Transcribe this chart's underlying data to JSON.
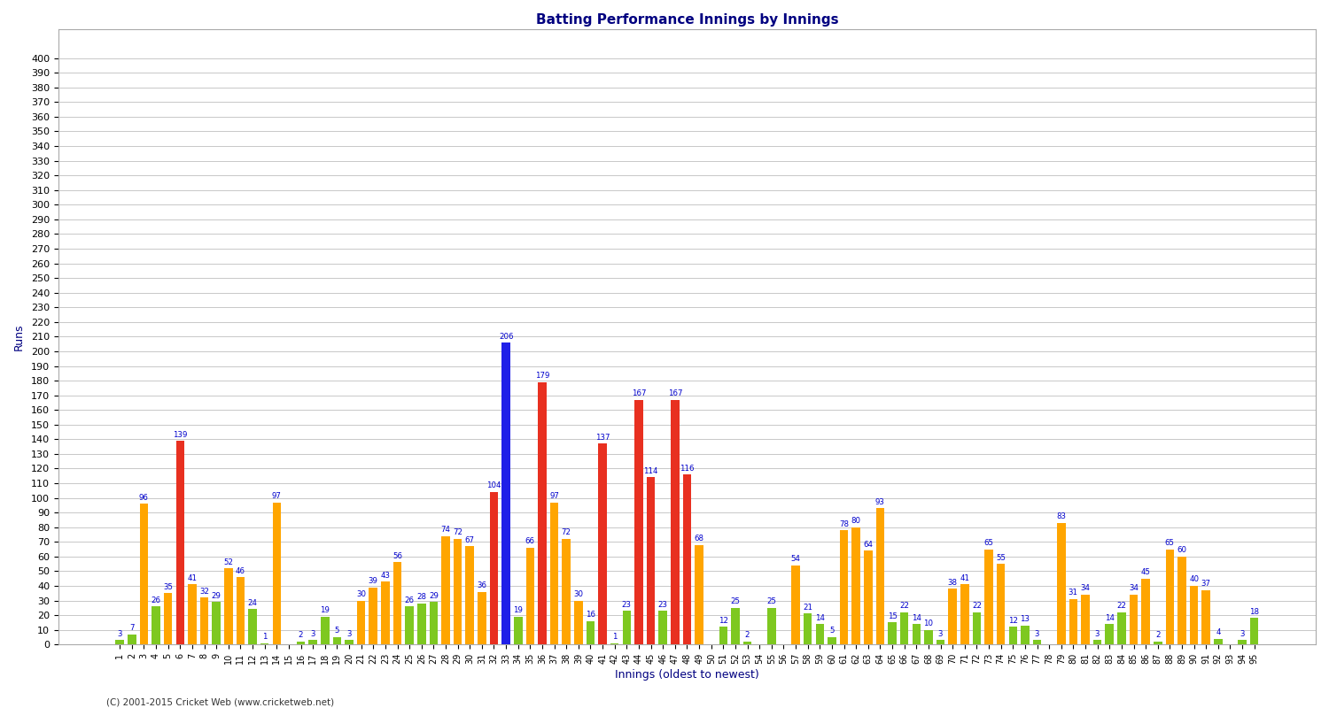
{
  "title": "Batting Performance Innings by Innings",
  "xlabel": "Innings (oldest to newest)",
  "ylabel": "Runs",
  "footer": "(C) 2001-2015 Cricket Web (www.cricketweb.net)",
  "ylim": [
    0,
    420
  ],
  "yticks": [
    0,
    10,
    20,
    30,
    40,
    50,
    60,
    70,
    80,
    90,
    100,
    110,
    120,
    130,
    140,
    150,
    160,
    170,
    180,
    190,
    200,
    210,
    220,
    230,
    240,
    250,
    260,
    270,
    280,
    290,
    300,
    310,
    320,
    330,
    340,
    350,
    360,
    370,
    380,
    390,
    400
  ],
  "innings": [
    {
      "label": "1",
      "runs": 3,
      "not_out": false
    },
    {
      "label": "2",
      "runs": 7,
      "not_out": false
    },
    {
      "label": "3",
      "runs": 96,
      "not_out": false
    },
    {
      "label": "4",
      "runs": 26,
      "not_out": false
    },
    {
      "label": "5",
      "runs": 35,
      "not_out": false
    },
    {
      "label": "6",
      "runs": 139,
      "not_out": false
    },
    {
      "label": "7",
      "runs": 41,
      "not_out": false
    },
    {
      "label": "8",
      "runs": 32,
      "not_out": false
    },
    {
      "label": "9",
      "runs": 29,
      "not_out": false
    },
    {
      "label": "10",
      "runs": 52,
      "not_out": false
    },
    {
      "label": "11",
      "runs": 46,
      "not_out": false
    },
    {
      "label": "12",
      "runs": 24,
      "not_out": false
    },
    {
      "label": "13",
      "runs": 1,
      "not_out": false
    },
    {
      "label": "14",
      "runs": 97,
      "not_out": false
    },
    {
      "label": "15",
      "runs": 0,
      "not_out": false
    },
    {
      "label": "16",
      "runs": 2,
      "not_out": false
    },
    {
      "label": "17",
      "runs": 3,
      "not_out": false
    },
    {
      "label": "18",
      "runs": 19,
      "not_out": false
    },
    {
      "label": "19",
      "runs": 5,
      "not_out": false
    },
    {
      "label": "20",
      "runs": 3,
      "not_out": false
    },
    {
      "label": "21",
      "runs": 30,
      "not_out": false
    },
    {
      "label": "22",
      "runs": 39,
      "not_out": false
    },
    {
      "label": "23",
      "runs": 43,
      "not_out": false
    },
    {
      "label": "24",
      "runs": 56,
      "not_out": false
    },
    {
      "label": "25",
      "runs": 26,
      "not_out": false
    },
    {
      "label": "26",
      "runs": 28,
      "not_out": false
    },
    {
      "label": "27",
      "runs": 29,
      "not_out": false
    },
    {
      "label": "28",
      "runs": 74,
      "not_out": false
    },
    {
      "label": "29",
      "runs": 72,
      "not_out": false
    },
    {
      "label": "30",
      "runs": 67,
      "not_out": false
    },
    {
      "label": "31",
      "runs": 36,
      "not_out": false
    },
    {
      "label": "32",
      "runs": 104,
      "not_out": false
    },
    {
      "label": "33",
      "runs": 206,
      "not_out": true
    },
    {
      "label": "34",
      "runs": 19,
      "not_out": false
    },
    {
      "label": "35",
      "runs": 66,
      "not_out": false
    },
    {
      "label": "36",
      "runs": 179,
      "not_out": false
    },
    {
      "label": "37",
      "runs": 97,
      "not_out": false
    },
    {
      "label": "38",
      "runs": 72,
      "not_out": false
    },
    {
      "label": "39",
      "runs": 30,
      "not_out": false
    },
    {
      "label": "40",
      "runs": 16,
      "not_out": false
    },
    {
      "label": "41",
      "runs": 137,
      "not_out": false
    },
    {
      "label": "42",
      "runs": 1,
      "not_out": false
    },
    {
      "label": "43",
      "runs": 23,
      "not_out": false
    },
    {
      "label": "44",
      "runs": 167,
      "not_out": false
    },
    {
      "label": "45",
      "runs": 114,
      "not_out": false
    },
    {
      "label": "46",
      "runs": 23,
      "not_out": false
    },
    {
      "label": "47",
      "runs": 167,
      "not_out": false
    },
    {
      "label": "48",
      "runs": 116,
      "not_out": false
    },
    {
      "label": "49",
      "runs": 68,
      "not_out": false
    },
    {
      "label": "50",
      "runs": 0,
      "not_out": false
    },
    {
      "label": "51",
      "runs": 12,
      "not_out": false
    },
    {
      "label": "52",
      "runs": 25,
      "not_out": false
    },
    {
      "label": "53",
      "runs": 2,
      "not_out": false
    },
    {
      "label": "54",
      "runs": 0,
      "not_out": false
    },
    {
      "label": "55",
      "runs": 25,
      "not_out": false
    },
    {
      "label": "56",
      "runs": 0,
      "not_out": false
    },
    {
      "label": "57",
      "runs": 54,
      "not_out": false
    },
    {
      "label": "58",
      "runs": 21,
      "not_out": false
    },
    {
      "label": "59",
      "runs": 14,
      "not_out": false
    },
    {
      "label": "60",
      "runs": 5,
      "not_out": false
    },
    {
      "label": "61",
      "runs": 78,
      "not_out": false
    },
    {
      "label": "62",
      "runs": 80,
      "not_out": false
    },
    {
      "label": "63",
      "runs": 64,
      "not_out": false
    },
    {
      "label": "64",
      "runs": 93,
      "not_out": false
    },
    {
      "label": "65",
      "runs": 15,
      "not_out": false
    },
    {
      "label": "66",
      "runs": 22,
      "not_out": false
    },
    {
      "label": "67",
      "runs": 14,
      "not_out": false
    },
    {
      "label": "68",
      "runs": 10,
      "not_out": false
    },
    {
      "label": "69",
      "runs": 3,
      "not_out": false
    },
    {
      "label": "70",
      "runs": 38,
      "not_out": false
    },
    {
      "label": "71",
      "runs": 41,
      "not_out": false
    },
    {
      "label": "72",
      "runs": 22,
      "not_out": false
    },
    {
      "label": "73",
      "runs": 65,
      "not_out": false
    },
    {
      "label": "74",
      "runs": 55,
      "not_out": false
    },
    {
      "label": "75",
      "runs": 12,
      "not_out": false
    },
    {
      "label": "76",
      "runs": 13,
      "not_out": false
    },
    {
      "label": "77",
      "runs": 3,
      "not_out": false
    },
    {
      "label": "78",
      "runs": 0,
      "not_out": false
    },
    {
      "label": "79",
      "runs": 83,
      "not_out": false
    },
    {
      "label": "80",
      "runs": 31,
      "not_out": false
    },
    {
      "label": "81",
      "runs": 34,
      "not_out": false
    },
    {
      "label": "82",
      "runs": 3,
      "not_out": false
    },
    {
      "label": "83",
      "runs": 14,
      "not_out": false
    },
    {
      "label": "84",
      "runs": 22,
      "not_out": false
    },
    {
      "label": "85",
      "runs": 34,
      "not_out": false
    },
    {
      "label": "86",
      "runs": 45,
      "not_out": false
    },
    {
      "label": "87",
      "runs": 2,
      "not_out": false
    },
    {
      "label": "88",
      "runs": 65,
      "not_out": false
    },
    {
      "label": "89",
      "runs": 60,
      "not_out": false
    },
    {
      "label": "90",
      "runs": 40,
      "not_out": false
    },
    {
      "label": "91",
      "runs": 37,
      "not_out": false
    },
    {
      "label": "92",
      "runs": 4,
      "not_out": false
    },
    {
      "label": "93",
      "runs": 0,
      "not_out": false
    },
    {
      "label": "94",
      "runs": 3,
      "not_out": false
    },
    {
      "label": "95",
      "runs": 18,
      "not_out": false
    }
  ],
  "color_green": "#7EC820",
  "color_orange": "#FFA500",
  "color_red": "#E83020",
  "color_blue": "#2020E8",
  "color_label": "#0000CC",
  "bg_color": "#FFFFFF",
  "grid_color": "#C8C8C8",
  "title_color": "#000080",
  "green_threshold": 30,
  "orange_threshold": 100
}
